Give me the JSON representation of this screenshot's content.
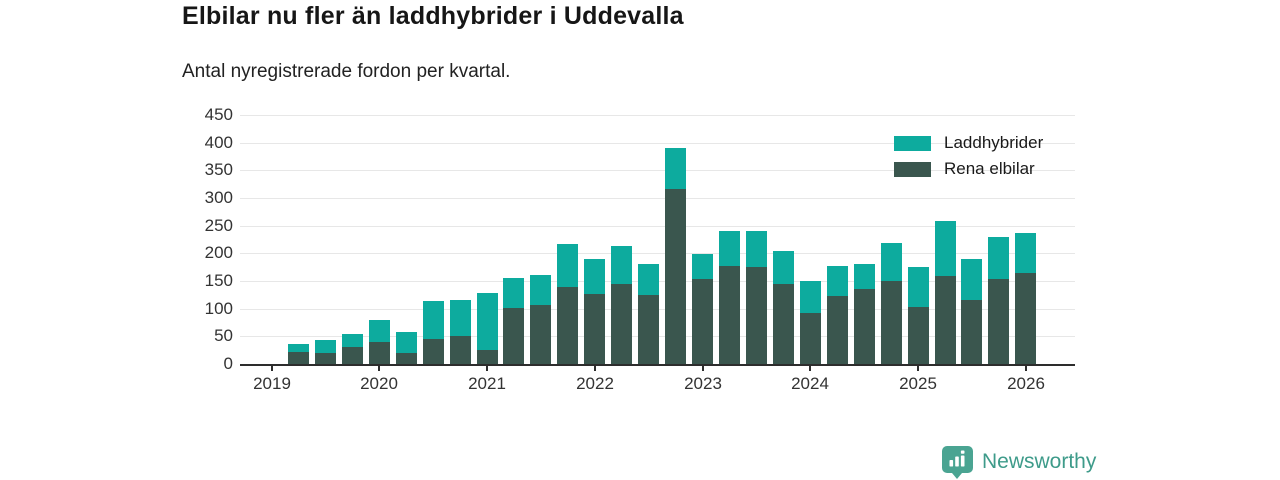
{
  "header": {
    "title": "Elbilar nu fler än laddhybrider i Uddevalla",
    "subtitle": "Antal nyregistrerade fordon per kvartal."
  },
  "legend": [
    {
      "label": "Laddhybrider",
      "color": "#0dab9e"
    },
    {
      "label": "Rena elbilar",
      "color": "#3a564e"
    }
  ],
  "footer": {
    "brand": "Newsworthy",
    "brand_color": "#3e9b8a",
    "icon_color": "#4aa492"
  },
  "chart_data": {
    "type": "bar",
    "stacked": true,
    "title": "Elbilar nu fler än laddhybrider i Uddevalla",
    "subtitle": "Antal nyregistrerade fordon per kvartal.",
    "grid": "horizontal",
    "legend_position": "top-right",
    "ylim": [
      0,
      450
    ],
    "y_ticks": [
      0,
      50,
      100,
      150,
      200,
      250,
      300,
      350,
      400,
      450
    ],
    "x_tick_labels": [
      "2019",
      "2020",
      "2021",
      "2022",
      "2023",
      "2024",
      "2025",
      "2026"
    ],
    "categories": [
      "2019 Q2",
      "2019 Q3",
      "2019 Q4",
      "2020 Q1",
      "2020 Q2",
      "2020 Q3",
      "2020 Q4",
      "2021 Q1",
      "2021 Q2",
      "2021 Q3",
      "2021 Q4",
      "2022 Q1",
      "2022 Q2",
      "2022 Q3",
      "2022 Q4",
      "2023 Q1",
      "2023 Q2",
      "2023 Q3",
      "2023 Q4",
      "2024 Q1",
      "2024 Q2",
      "2024 Q3",
      "2024 Q4",
      "2025 Q1",
      "2025 Q2",
      "2025 Q3",
      "2025 Q4",
      "2026 Q1"
    ],
    "series": [
      {
        "name": "Rena elbilar",
        "color": "#3a564e",
        "stack_position": "bottom",
        "values": [
          22,
          20,
          30,
          40,
          20,
          46,
          50,
          26,
          102,
          107,
          140,
          127,
          144,
          125,
          317,
          154,
          178,
          176,
          145,
          92,
          123,
          136,
          150,
          103,
          159,
          115,
          153,
          164
        ]
      },
      {
        "name": "Laddhybrider",
        "color": "#0dab9e",
        "stack_position": "top",
        "values": [
          15,
          23,
          25,
          39,
          37,
          67,
          66,
          102,
          54,
          53,
          77,
          63,
          70,
          55,
          73,
          45,
          63,
          64,
          60,
          58,
          55,
          44,
          69,
          72,
          100,
          75,
          77,
          73
        ]
      }
    ]
  }
}
